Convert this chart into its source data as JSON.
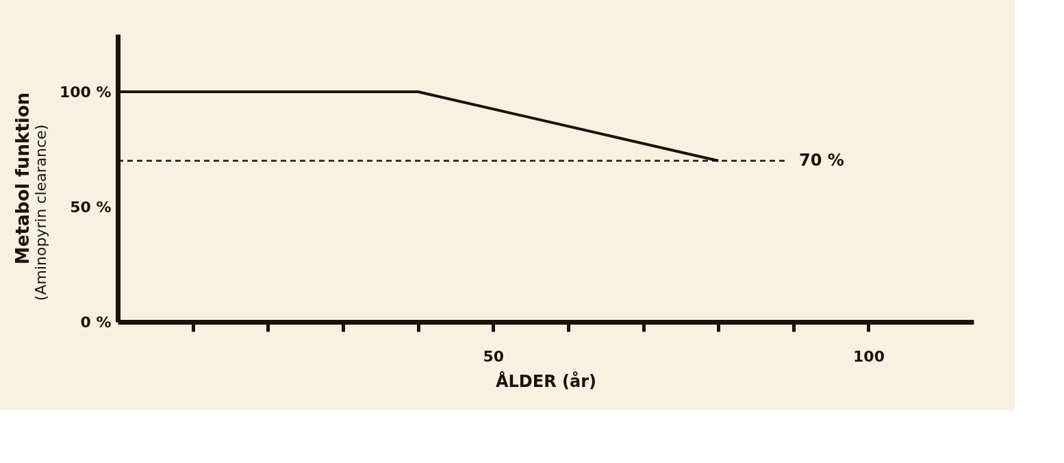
{
  "chart_data": {
    "type": "line",
    "xlabel": "ÅLDER (år)",
    "ylabel": "Metabol funktion",
    "annotations": [
      "(Aminopyrin clearance)"
    ],
    "x": [
      0,
      40,
      80
    ],
    "series": [
      {
        "color": "#1a120b",
        "values": [
          100,
          100,
          70
        ]
      }
    ],
    "xlim": [
      0,
      114
    ],
    "xticks": [
      {
        "value": 10,
        "label": null
      },
      {
        "value": 20,
        "label": null
      },
      {
        "value": 30,
        "label": null
      },
      {
        "value": 40,
        "label": null
      },
      50,
      {
        "value": 60,
        "label": null
      },
      {
        "value": 70,
        "label": null
      },
      {
        "value": 80,
        "label": null
      },
      {
        "value": 90,
        "label": null
      },
      100
    ],
    "ylim": [
      0,
      125
    ],
    "yticks": [
      {
        "value": 0,
        "label": "0 %"
      },
      {
        "value": 50,
        "label": "50 %"
      },
      {
        "value": 100,
        "label": "100 %"
      }
    ],
    "ref_lines": [
      {
        "axis": "y",
        "value": 70,
        "label": "70 %",
        "color": "#1a120b",
        "line_style": "dashed"
      }
    ],
    "grid": false,
    "marker": "none",
    "line_style": "solid"
  }
}
